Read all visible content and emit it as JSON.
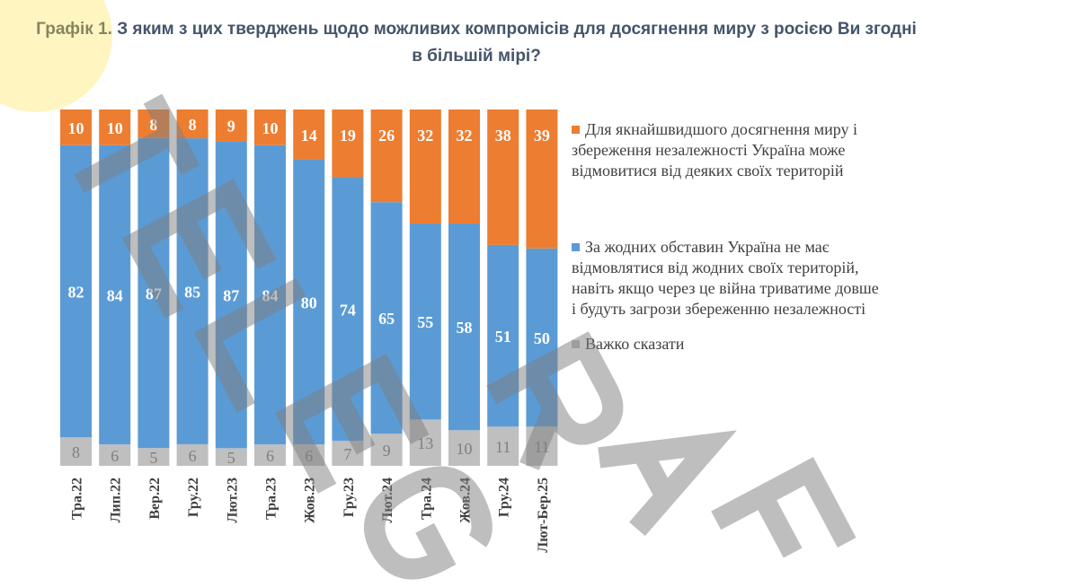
{
  "title": "Графік 1. З яким з цих тверджень щодо можливих компромісів для досягнення миру з росією Ви згодні в більшій мірі?",
  "watermark": "TELEGRAF",
  "chart_data": {
    "type": "bar",
    "stacked": true,
    "title": "Графік 1. З яким з цих тверджень щодо можливих компромісів для досягнення миру з росією Ви згодні в більшій мірі?",
    "categories": [
      "Тра.22",
      "Лип.22",
      "Вер.22",
      "Гру.22",
      "Лют.23",
      "Тра.23",
      "Жов.23",
      "Гру.23",
      "Лют.24",
      "Тра.24",
      "Жов.24",
      "Гру.24",
      "Лют-Бер.25"
    ],
    "series": [
      {
        "name": "Важко сказати",
        "color": "#bfbfbf",
        "values": [
          8,
          6,
          5,
          6,
          5,
          6,
          6,
          7,
          9,
          13,
          10,
          11,
          11
        ]
      },
      {
        "name": "За жодних обставин Україна не має відмовлятися від жодних своїх територій, навіть якщо через це війна триватиме довше і будуть загрози збереженню незалежності",
        "color": "#5b9bd5",
        "values": [
          82,
          84,
          87,
          85,
          87,
          84,
          80,
          74,
          65,
          55,
          58,
          51,
          50
        ]
      },
      {
        "name": "Для якнайшвидшого досягнення миру і збереження незалежності Україна може відмовитися від деяких своїх територій",
        "color": "#ed7d31",
        "values": [
          10,
          10,
          8,
          8,
          9,
          10,
          14,
          19,
          26,
          32,
          32,
          38,
          39
        ]
      }
    ],
    "ylim": [
      0,
      100
    ],
    "grid": false,
    "legend_position": "right"
  }
}
